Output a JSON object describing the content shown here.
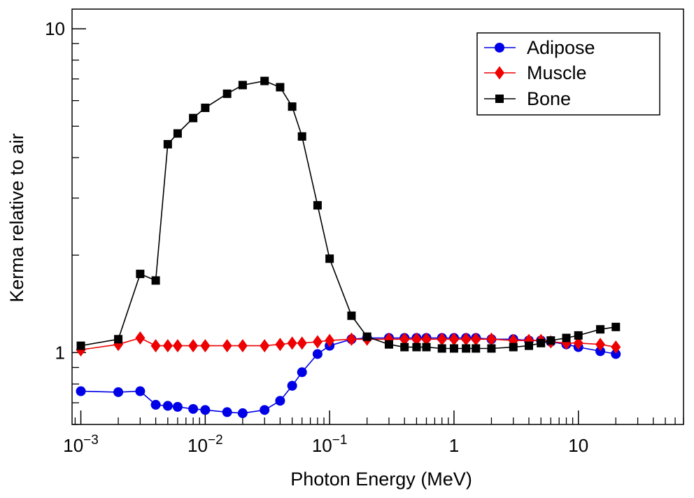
{
  "chart_data": {
    "type": "line",
    "title": "",
    "xlabel": "Photon Energy (MeV)",
    "ylabel": "Kerma relative to air",
    "xscale": "log",
    "yscale": "log",
    "xlim": [
      0.00085,
      70
    ],
    "ylim": [
      0.6,
      11.5
    ],
    "grid": false,
    "legend_position": "top-right",
    "x_ticks": [
      {
        "value": 0.001,
        "mantissa": "10",
        "exponent": "−3"
      },
      {
        "value": 0.01,
        "mantissa": "10",
        "exponent": "−2"
      },
      {
        "value": 0.1,
        "mantissa": "10",
        "exponent": "−1"
      },
      {
        "value": 1,
        "mantissa": "1",
        "exponent": ""
      },
      {
        "value": 10,
        "mantissa": "10",
        "exponent": ""
      }
    ],
    "y_ticks": [
      {
        "value": 1,
        "label": "1"
      },
      {
        "value": 10,
        "label": "10"
      }
    ],
    "series": [
      {
        "name": "Adipose",
        "color": "#0000e6",
        "marker": "circle",
        "x": [
          0.001,
          0.002,
          0.003,
          0.004,
          0.005,
          0.006,
          0.008,
          0.01,
          0.015,
          0.02,
          0.03,
          0.04,
          0.05,
          0.06,
          0.08,
          0.1,
          0.15,
          0.2,
          0.3,
          0.4,
          0.5,
          0.6,
          0.8,
          1,
          1.25,
          1.5,
          2,
          3,
          4,
          5,
          6,
          8,
          10,
          15,
          20
        ],
        "values": [
          0.76,
          0.755,
          0.76,
          0.69,
          0.685,
          0.68,
          0.67,
          0.665,
          0.655,
          0.65,
          0.665,
          0.71,
          0.79,
          0.87,
          0.99,
          1.05,
          1.1,
          1.11,
          1.11,
          1.11,
          1.11,
          1.11,
          1.11,
          1.11,
          1.11,
          1.11,
          1.1,
          1.1,
          1.09,
          1.09,
          1.08,
          1.06,
          1.04,
          1.01,
          0.99
        ]
      },
      {
        "name": "Muscle",
        "color": "#ee0000",
        "marker": "diamond",
        "x": [
          0.001,
          0.002,
          0.003,
          0.004,
          0.005,
          0.006,
          0.008,
          0.01,
          0.015,
          0.02,
          0.03,
          0.04,
          0.05,
          0.06,
          0.08,
          0.1,
          0.15,
          0.2,
          0.3,
          0.4,
          0.5,
          0.6,
          0.8,
          1,
          1.25,
          1.5,
          2,
          3,
          4,
          5,
          6,
          8,
          10,
          15,
          20
        ],
        "values": [
          1.02,
          1.06,
          1.11,
          1.05,
          1.05,
          1.05,
          1.05,
          1.05,
          1.05,
          1.05,
          1.05,
          1.06,
          1.07,
          1.07,
          1.08,
          1.09,
          1.1,
          1.1,
          1.1,
          1.1,
          1.1,
          1.1,
          1.1,
          1.1,
          1.1,
          1.1,
          1.1,
          1.09,
          1.09,
          1.09,
          1.08,
          1.07,
          1.07,
          1.06,
          1.04
        ]
      },
      {
        "name": "Bone",
        "color": "#000000",
        "marker": "square",
        "x": [
          0.001,
          0.002,
          0.003,
          0.004,
          0.005,
          0.006,
          0.008,
          0.01,
          0.015,
          0.02,
          0.03,
          0.04,
          0.05,
          0.06,
          0.08,
          0.1,
          0.15,
          0.2,
          0.3,
          0.4,
          0.5,
          0.6,
          0.8,
          1,
          1.25,
          1.5,
          2,
          3,
          4,
          5,
          6,
          8,
          10,
          15,
          20
        ],
        "values": [
          1.05,
          1.1,
          1.75,
          1.67,
          4.4,
          4.75,
          5.3,
          5.7,
          6.3,
          6.7,
          6.9,
          6.6,
          5.75,
          4.65,
          2.85,
          1.95,
          1.3,
          1.12,
          1.06,
          1.04,
          1.04,
          1.04,
          1.03,
          1.03,
          1.03,
          1.03,
          1.03,
          1.04,
          1.05,
          1.07,
          1.09,
          1.11,
          1.13,
          1.18,
          1.2
        ]
      }
    ]
  }
}
